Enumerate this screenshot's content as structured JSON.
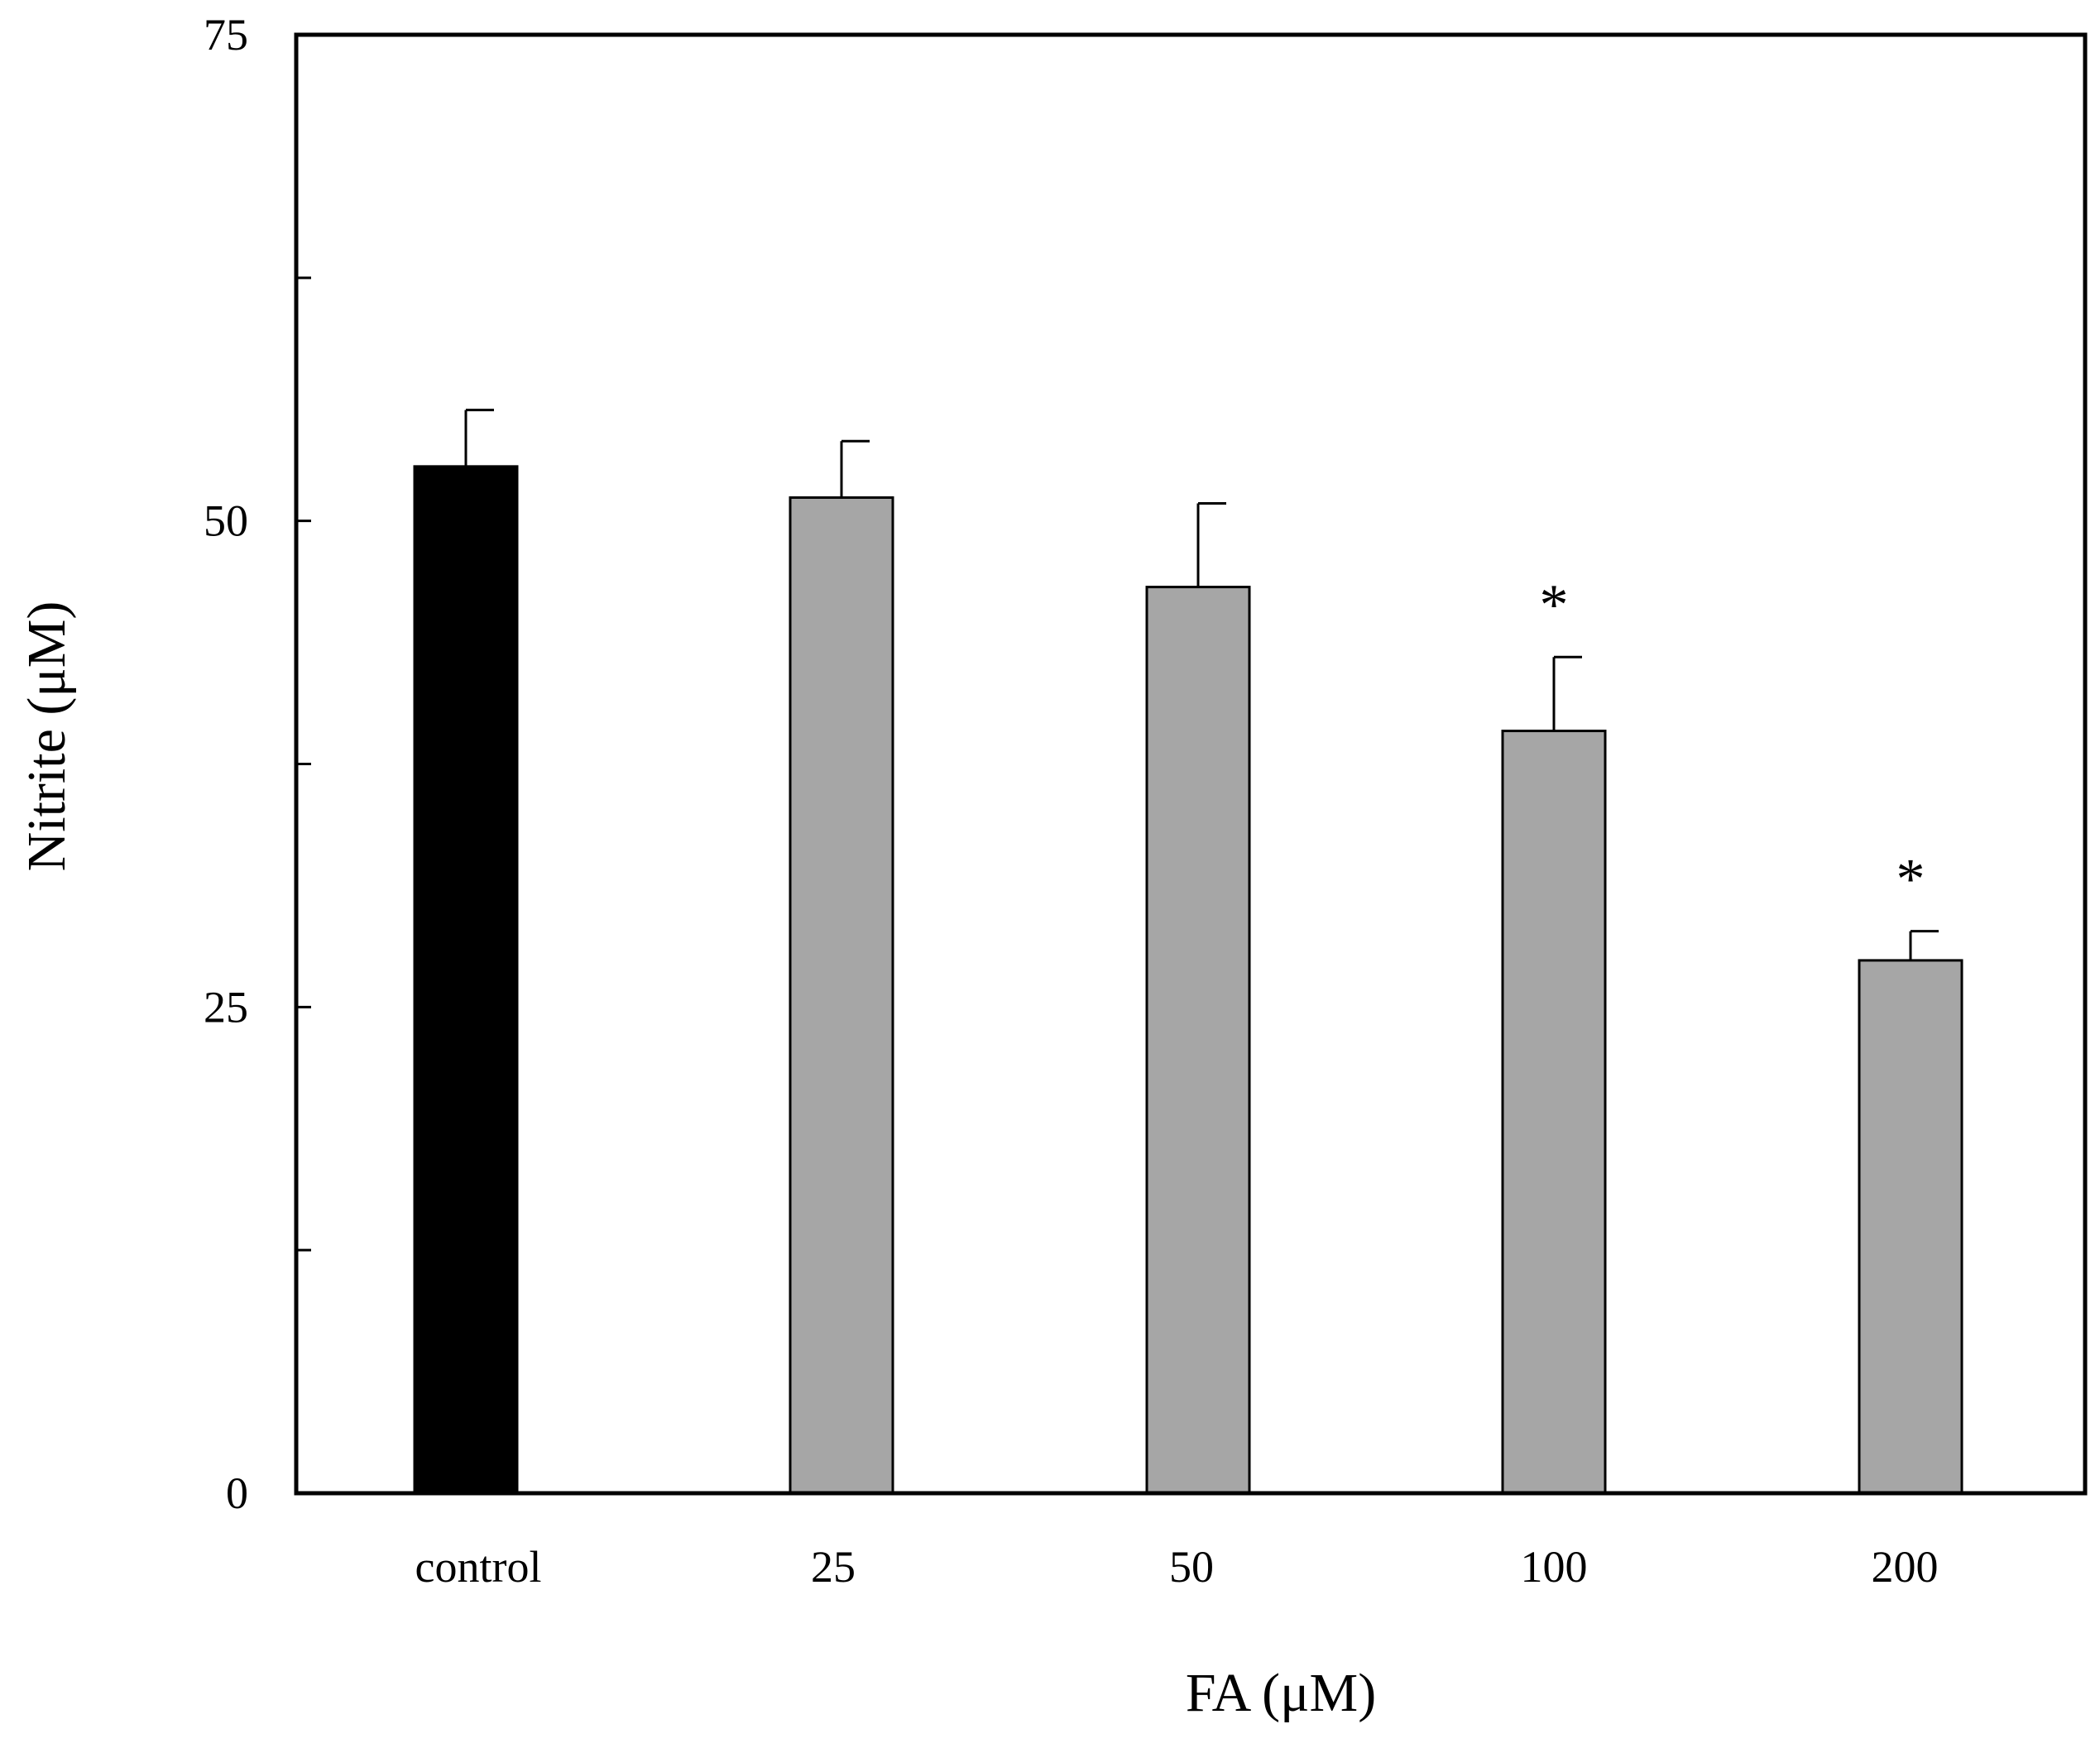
{
  "chart_data": {
    "type": "bar",
    "title": "",
    "xlabel": "FA (μM)",
    "ylabel": "Nitrite  (μM)",
    "ylim": [
      0,
      75
    ],
    "yticks_major": [
      0,
      25,
      50,
      75
    ],
    "yticks_minor": [
      12.5,
      37.5,
      62.5
    ],
    "grid": false,
    "categories": [
      "control",
      "25",
      "50",
      "100",
      "200"
    ],
    "series": [
      {
        "name": "Nitrite",
        "values": [
          52.8,
          51.2,
          46.6,
          39.2,
          27.4
        ],
        "errors": [
          2.9,
          2.9,
          4.3,
          3.8,
          1.5
        ],
        "colors": [
          "#000000",
          "#a6a6a6",
          "#a6a6a6",
          "#a6a6a6",
          "#a6a6a6"
        ],
        "annotations": [
          "",
          "",
          "",
          "*",
          "*"
        ]
      }
    ]
  }
}
